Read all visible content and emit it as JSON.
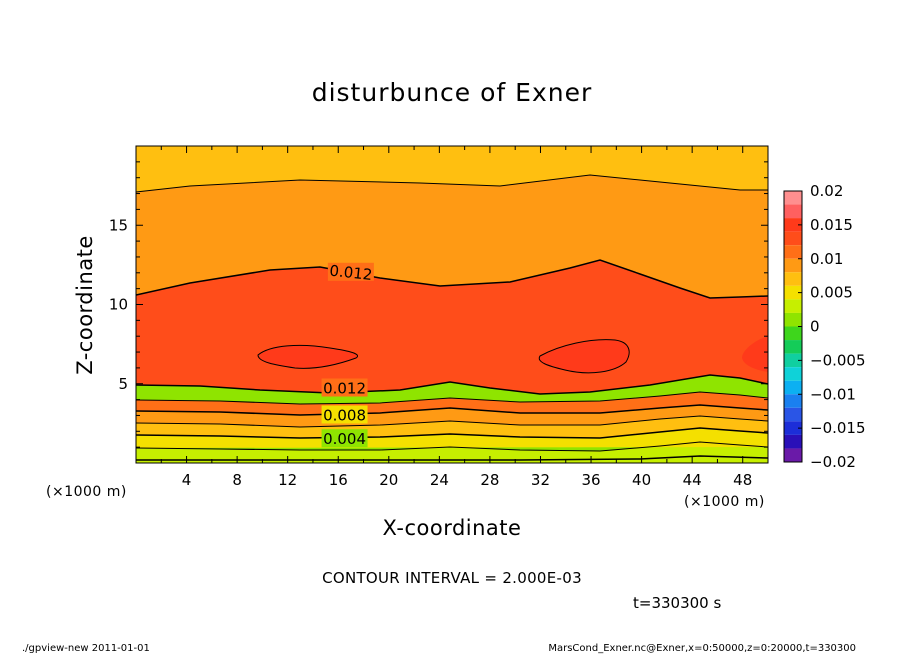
{
  "chart_data": {
    "type": "heatmap",
    "title": "disturbunce of Exner",
    "xlabel": "X-coordinate",
    "ylabel": "Z-coordinate",
    "x_unit": "(×1000 m)",
    "x_unit_right": "(×1000 m)",
    "y_unit": "",
    "xlim": [
      0,
      50
    ],
    "ylim": [
      0,
      20
    ],
    "x_ticks": [
      4,
      8,
      12,
      16,
      20,
      24,
      28,
      32,
      36,
      40,
      44,
      48
    ],
    "y_ticks": [
      5,
      10,
      15
    ],
    "contour_interval": 0.002,
    "contour_interval_text": "CONTOUR INTERVAL = 2.000E-03",
    "time_text": "t=330300 s",
    "contour_labels": [
      {
        "text": "0.012",
        "x": 17,
        "z": 12.0
      },
      {
        "text": "0.012",
        "x": 16.5,
        "z": 4.7
      },
      {
        "text": "0.008",
        "x": 16.5,
        "z": 3.0
      },
      {
        "text": "0.004",
        "x": 16.5,
        "z": 1.5
      }
    ],
    "colorbar": {
      "min": -0.02,
      "max": 0.02,
      "tick_values": [
        0.02,
        0.015,
        0.01,
        0.005,
        0,
        -0.005,
        -0.01,
        -0.015,
        -0.02
      ],
      "tick_labels": [
        "0.02",
        "0.015",
        "0.01",
        "0.005",
        "0",
        "−0.005",
        "−0.01",
        "−0.015",
        "−0.02"
      ],
      "levels": [
        {
          "lo": 0.018,
          "hi": 0.02,
          "color": "#ff8f8f"
        },
        {
          "lo": 0.016,
          "hi": 0.018,
          "color": "#ff6060"
        },
        {
          "lo": 0.014,
          "hi": 0.016,
          "color": "#ff3a1a"
        },
        {
          "lo": 0.012,
          "hi": 0.014,
          "color": "#ff4d1a"
        },
        {
          "lo": 0.01,
          "hi": 0.012,
          "color": "#ff6f17"
        },
        {
          "lo": 0.008,
          "hi": 0.01,
          "color": "#ff9a14"
        },
        {
          "lo": 0.006,
          "hi": 0.008,
          "color": "#ffbf10"
        },
        {
          "lo": 0.004,
          "hi": 0.006,
          "color": "#f4e000"
        },
        {
          "lo": 0.002,
          "hi": 0.004,
          "color": "#c6ef00"
        },
        {
          "lo": 0.0,
          "hi": 0.002,
          "color": "#8fe400"
        },
        {
          "lo": -0.002,
          "hi": 0.0,
          "color": "#3ed61c"
        },
        {
          "lo": -0.004,
          "hi": -0.002,
          "color": "#14cc58"
        },
        {
          "lo": -0.006,
          "hi": -0.004,
          "color": "#10cfa0"
        },
        {
          "lo": -0.008,
          "hi": -0.006,
          "color": "#0fd2d8"
        },
        {
          "lo": -0.01,
          "hi": -0.008,
          "color": "#0cb0f2"
        },
        {
          "lo": -0.012,
          "hi": -0.01,
          "color": "#1a80f0"
        },
        {
          "lo": -0.014,
          "hi": -0.012,
          "color": "#2a55e6"
        },
        {
          "lo": -0.016,
          "hi": -0.014,
          "color": "#1c2ed8"
        },
        {
          "lo": -0.018,
          "hi": -0.016,
          "color": "#2a10b8"
        },
        {
          "lo": -0.02,
          "hi": -0.018,
          "color": "#6a1aa8"
        }
      ]
    },
    "footer_left": "./gpview-new   2011-01-01",
    "footer_right": "MarsCond_Exner.nc@Exner,x=0:50000,z=0:20000,t=330300"
  }
}
